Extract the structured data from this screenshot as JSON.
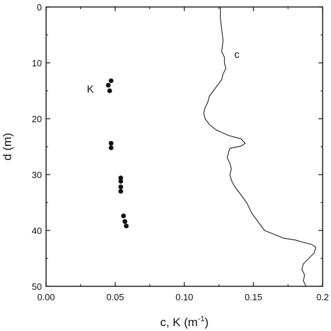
{
  "chart_data": {
    "type": "scatter",
    "title": "",
    "xlabel": "c, K (m",
    "xlabel_sup": "-1",
    "xlabel_suffix": ")",
    "ylabel": "d (m)",
    "xlim": [
      0.0,
      0.2
    ],
    "ylim": [
      0,
      50
    ],
    "y_inverted": true,
    "x_tick_labels": [
      "0.00",
      "0.05",
      "0.10",
      "0.15",
      "0.2"
    ],
    "x_ticks": [
      0.0,
      0.05,
      0.1,
      0.15,
      0.2
    ],
    "y_ticks": [
      0,
      10,
      20,
      30,
      40,
      50
    ],
    "y_tick_labels": [
      "0",
      "10",
      "20",
      "30",
      "40",
      "50"
    ],
    "grid": false,
    "series": [
      {
        "name": "K",
        "style": "points",
        "points": [
          [
            0.047,
            13.2
          ],
          [
            0.045,
            14.0
          ],
          [
            0.046,
            15.0
          ],
          [
            0.047,
            24.4
          ],
          [
            0.047,
            25.2
          ],
          [
            0.054,
            30.6
          ],
          [
            0.054,
            31.2
          ],
          [
            0.054,
            32.2
          ],
          [
            0.054,
            33.0
          ],
          [
            0.056,
            37.4
          ],
          [
            0.057,
            38.4
          ],
          [
            0.058,
            39.2
          ]
        ]
      },
      {
        "name": "c",
        "style": "line",
        "points": [
          [
            0.126,
            0
          ],
          [
            0.126,
            2
          ],
          [
            0.127,
            4
          ],
          [
            0.128,
            6
          ],
          [
            0.127,
            8
          ],
          [
            0.129,
            9
          ],
          [
            0.129,
            10
          ],
          [
            0.13,
            11
          ],
          [
            0.128,
            12
          ],
          [
            0.127,
            13
          ],
          [
            0.124,
            14
          ],
          [
            0.121,
            15
          ],
          [
            0.118,
            16
          ],
          [
            0.117,
            17
          ],
          [
            0.115,
            18
          ],
          [
            0.114,
            19
          ],
          [
            0.115,
            20
          ],
          [
            0.118,
            21
          ],
          [
            0.123,
            22
          ],
          [
            0.132,
            23
          ],
          [
            0.141,
            23.6
          ],
          [
            0.144,
            24.4
          ],
          [
            0.141,
            24.9
          ],
          [
            0.133,
            25.3
          ],
          [
            0.132,
            26
          ],
          [
            0.131,
            27
          ],
          [
            0.133,
            28
          ],
          [
            0.134,
            29
          ],
          [
            0.133,
            30
          ],
          [
            0.134,
            31
          ],
          [
            0.136,
            32
          ],
          [
            0.139,
            33
          ],
          [
            0.142,
            34
          ],
          [
            0.145,
            35
          ],
          [
            0.147,
            36
          ],
          [
            0.149,
            37
          ],
          [
            0.152,
            38
          ],
          [
            0.155,
            39
          ],
          [
            0.158,
            40
          ],
          [
            0.163,
            40.5
          ],
          [
            0.168,
            41
          ],
          [
            0.172,
            41.4
          ],
          [
            0.18,
            41.7
          ],
          [
            0.187,
            42.2
          ],
          [
            0.192,
            42.5
          ],
          [
            0.195,
            43.0
          ],
          [
            0.194,
            44.0
          ],
          [
            0.19,
            45.0
          ],
          [
            0.186,
            46.0
          ],
          [
            0.185,
            47.0
          ],
          [
            0.187,
            48.0
          ],
          [
            0.186,
            49.0
          ],
          [
            0.188,
            50
          ]
        ]
      }
    ],
    "annotations": [
      {
        "text": "K",
        "x": 0.032,
        "y": 15.3
      },
      {
        "text": "c",
        "x": 0.138,
        "y": 9.1
      }
    ]
  }
}
